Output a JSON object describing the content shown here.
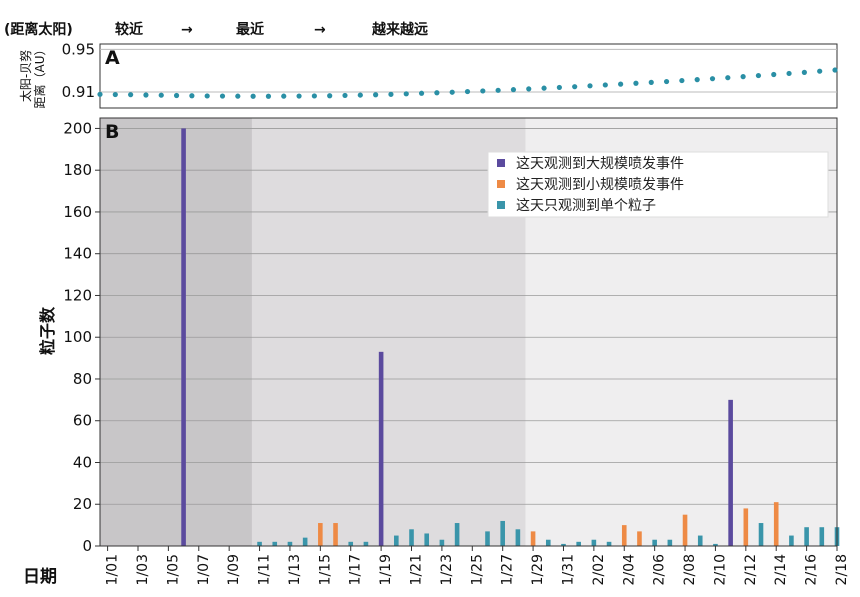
{
  "header": {
    "prefix": "(距离太阳)",
    "phase1": "较近",
    "arrow1": "→",
    "phase2": "最近",
    "arrow2": "→",
    "phase3": "越来越远"
  },
  "chart_data": [
    {
      "panel": "A",
      "type": "scatter",
      "ylabel_line1": "太阳-贝努",
      "ylabel_line2": "距离（AU）",
      "yticks": [
        0.91,
        0.95
      ],
      "ylim": [
        0.895,
        0.955
      ],
      "color": "#2a8fa5",
      "values": [
        0.9078,
        0.9076,
        0.9075,
        0.9072,
        0.907,
        0.9067,
        0.9065,
        0.9063,
        0.9062,
        0.9061,
        0.906,
        0.906,
        0.9061,
        0.9062,
        0.9063,
        0.9065,
        0.9068,
        0.9071,
        0.9074,
        0.9078,
        0.9083,
        0.9088,
        0.9093,
        0.9098,
        0.9104,
        0.911,
        0.9116,
        0.9122,
        0.9129,
        0.9136,
        0.9143,
        0.915,
        0.9158,
        0.9166,
        0.9174,
        0.9182,
        0.919,
        0.9198,
        0.9207,
        0.9216,
        0.9225,
        0.9234,
        0.9244,
        0.9254,
        0.9264,
        0.9274,
        0.9284,
        0.9295,
        0.9306
      ]
    },
    {
      "panel": "B",
      "type": "bar",
      "ylabel": "粒子数",
      "xlabel": "日期",
      "ylim": [
        0,
        205
      ],
      "yticks": [
        0,
        20,
        40,
        60,
        80,
        100,
        120,
        140,
        160,
        180,
        200
      ],
      "xtick_labels": [
        "1/01",
        "1/03",
        "1/05",
        "1/07",
        "1/09",
        "1/11",
        "1/13",
        "1/15",
        "1/17",
        "1/19",
        "1/21",
        "1/23",
        "1/25",
        "1/27",
        "1/29",
        "1/31",
        "2/02",
        "2/04",
        "2/06",
        "2/08",
        "2/10",
        "2/12",
        "2/14",
        "2/16",
        "2/18"
      ],
      "legend": [
        {
          "label": "这天观测到大规模喷发事件",
          "color": "#5b4a9e"
        },
        {
          "label": "这天观测到小规模喷发事件",
          "color": "#ee8a45"
        },
        {
          "label": "这天只观测到单个粒子",
          "color": "#3a95aa"
        }
      ],
      "bars": [
        {
          "day": 6,
          "value": 200,
          "kind": "large"
        },
        {
          "day": 11,
          "value": 2,
          "kind": "single"
        },
        {
          "day": 12,
          "value": 2,
          "kind": "single"
        },
        {
          "day": 13,
          "value": 2,
          "kind": "single"
        },
        {
          "day": 14,
          "value": 4,
          "kind": "single"
        },
        {
          "day": 15,
          "value": 11,
          "kind": "small"
        },
        {
          "day": 16,
          "value": 11,
          "kind": "small"
        },
        {
          "day": 17,
          "value": 2,
          "kind": "single"
        },
        {
          "day": 18,
          "value": 2,
          "kind": "single"
        },
        {
          "day": 19,
          "value": 93,
          "kind": "large"
        },
        {
          "day": 20,
          "value": 5,
          "kind": "single"
        },
        {
          "day": 21,
          "value": 8,
          "kind": "single"
        },
        {
          "day": 22,
          "value": 6,
          "kind": "single"
        },
        {
          "day": 23,
          "value": 3,
          "kind": "single"
        },
        {
          "day": 24,
          "value": 11,
          "kind": "single"
        },
        {
          "day": 26,
          "value": 7,
          "kind": "single"
        },
        {
          "day": 27,
          "value": 12,
          "kind": "single"
        },
        {
          "day": 28,
          "value": 8,
          "kind": "single"
        },
        {
          "day": 29,
          "value": 7,
          "kind": "small"
        },
        {
          "day": 30,
          "value": 3,
          "kind": "single"
        },
        {
          "day": 31,
          "value": 1,
          "kind": "single"
        },
        {
          "day": 32,
          "value": 2,
          "kind": "single"
        },
        {
          "day": 33,
          "value": 3,
          "kind": "single"
        },
        {
          "day": 34,
          "value": 2,
          "kind": "single"
        },
        {
          "day": 35,
          "value": 10,
          "kind": "small"
        },
        {
          "day": 36,
          "value": 7,
          "kind": "small"
        },
        {
          "day": 37,
          "value": 3,
          "kind": "single"
        },
        {
          "day": 38,
          "value": 3,
          "kind": "single"
        },
        {
          "day": 39,
          "value": 15,
          "kind": "small"
        },
        {
          "day": 40,
          "value": 5,
          "kind": "single"
        },
        {
          "day": 41,
          "value": 1,
          "kind": "single"
        },
        {
          "day": 42,
          "value": 70,
          "kind": "large"
        },
        {
          "day": 43,
          "value": 18,
          "kind": "small"
        },
        {
          "day": 44,
          "value": 11,
          "kind": "single"
        },
        {
          "day": 45,
          "value": 21,
          "kind": "small"
        },
        {
          "day": 46,
          "value": 5,
          "kind": "single"
        },
        {
          "day": 47,
          "value": 9,
          "kind": "single"
        },
        {
          "day": 48,
          "value": 9,
          "kind": "single"
        },
        {
          "day": 49,
          "value": 9,
          "kind": "single"
        }
      ],
      "background_bands": [
        {
          "from_day": 1,
          "to_day": 10.5,
          "color": "#c8c6c8"
        },
        {
          "from_day": 10.5,
          "to_day": 28.5,
          "color": "#dedcde"
        },
        {
          "from_day": 28.5,
          "to_day": 49.5,
          "color": "#efeeef"
        }
      ]
    }
  ]
}
